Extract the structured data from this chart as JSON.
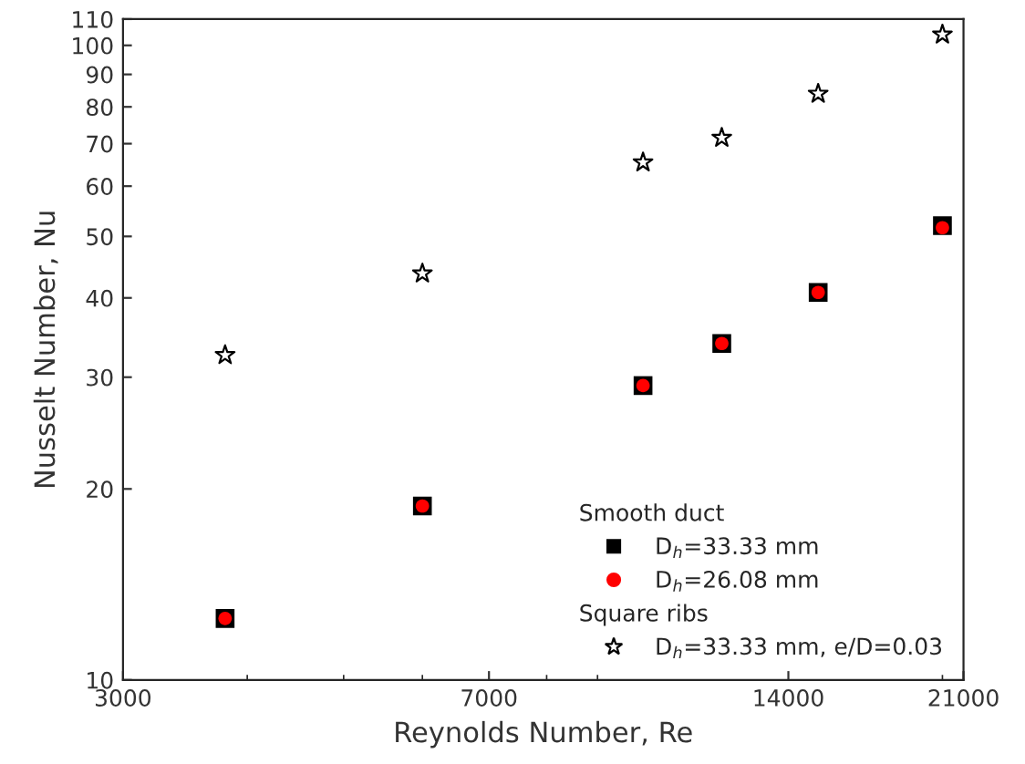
{
  "chart_data": {
    "type": "scatter",
    "xlabel": "Reynolds Number, Re",
    "ylabel": "Nusselt Number, Nu",
    "log": "xy",
    "grid": false,
    "legend": "bottom right",
    "annotations": [
      "Smooth duct",
      "Square ribs"
    ],
    "xlim": [
      3000,
      21000
    ],
    "xticks": [
      3000,
      7000,
      14000,
      21000
    ],
    "ylim": [
      10,
      110
    ],
    "yticks": [
      10,
      20,
      30,
      40,
      50,
      60,
      70,
      80,
      90,
      100,
      110
    ],
    "series": [
      {
        "name": "D$_{h}$=33.33 mm",
        "color": "#000000",
        "marker": "square",
        "x": [
          3800,
          6000,
          10000,
          12000,
          15000,
          20000
        ],
        "values": [
          12.5,
          18.8,
          29.1,
          33.9,
          40.8,
          52
        ]
      },
      {
        "name": "D$_{h}$=26.08 mm",
        "color": "#ff0000",
        "marker": "circle",
        "x": [
          3800,
          6000,
          10000,
          12000,
          15000,
          20000
        ],
        "values": [
          12.5,
          18.8,
          29.1,
          33.9,
          40.8,
          51.6
        ]
      },
      {
        "name": "D$_{h}$=33.33 mm, e/D=0.03",
        "color": "#000000",
        "marker": "star",
        "x": [
          3800,
          6000,
          10000,
          12000,
          15000,
          20000
        ],
        "values": [
          32.5,
          43.7,
          65.4,
          71.5,
          83.9,
          104
        ]
      }
    ]
  }
}
